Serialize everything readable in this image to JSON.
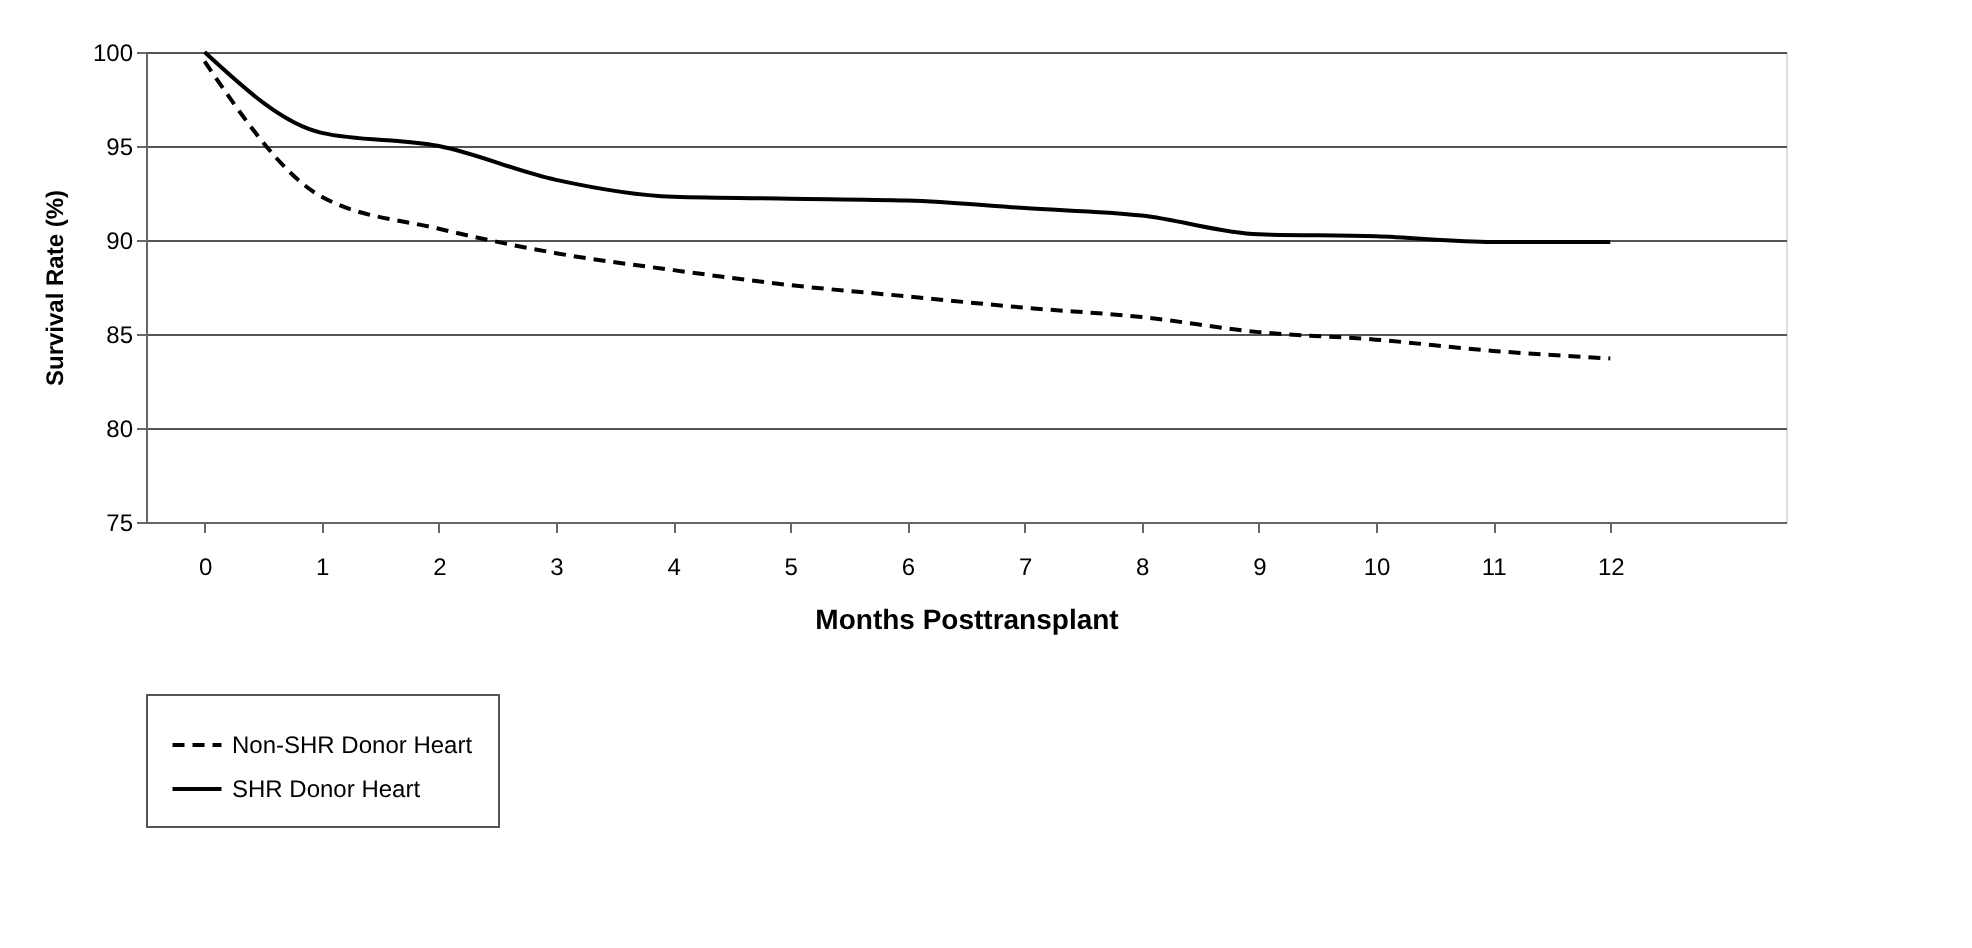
{
  "chart_data": {
    "type": "line",
    "xlabel": "Months Posttransplant",
    "ylabel": "Survival Rate (%)",
    "x": [
      0,
      1,
      2,
      3,
      4,
      5,
      6,
      7,
      8,
      9,
      10,
      11,
      12
    ],
    "xlim": [
      -0.5,
      13.5
    ],
    "xticks": [
      0,
      1,
      2,
      3,
      4,
      5,
      6,
      7,
      8,
      9,
      10,
      11,
      12
    ],
    "ylim": [
      75,
      100
    ],
    "yticks": [
      75,
      80,
      85,
      90,
      95,
      100
    ],
    "grid": "y",
    "legend": "bottom left",
    "marker": "none",
    "series": [
      {
        "name": "Non-SHR Donor Heart",
        "color": "#000000",
        "line_style": "dashed",
        "values": [
          99.5,
          92.3,
          90.6,
          89.3,
          88.4,
          87.6,
          87.0,
          86.4,
          85.9,
          85.1,
          84.7,
          84.1,
          83.7
        ]
      },
      {
        "name": "SHR Donor Heart",
        "color": "#000000",
        "line_style": "solid",
        "values": [
          100,
          95.7,
          95.0,
          93.2,
          92.3,
          92.2,
          92.1,
          91.7,
          91.3,
          90.3,
          90.2,
          89.9,
          89.9
        ]
      }
    ]
  }
}
